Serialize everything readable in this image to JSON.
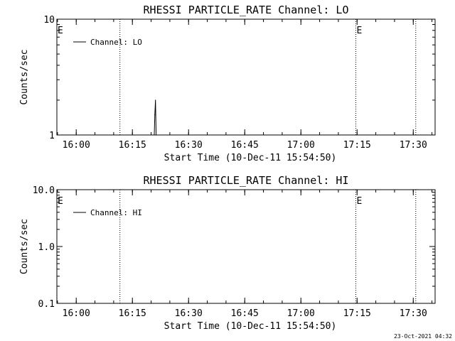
{
  "footer_timestamp": "23-Oct-2021 04:32",
  "chart_data": [
    {
      "type": "line",
      "title": "RHESSI PARTICLE_RATE Channel: LO",
      "xlabel": "Start Time (10-Dec-11 15:54:50)",
      "ylabel": "Counts/sec",
      "yscale": "log",
      "ylim": [
        1,
        10
      ],
      "xlim": [
        "15:54:50",
        "17:35:50"
      ],
      "x_ticks": [
        "16:00",
        "16:15",
        "16:30",
        "16:45",
        "17:00",
        "17:15",
        "17:30"
      ],
      "y_ticks": [
        "1",
        "10"
      ],
      "legend": {
        "position": "top-left",
        "entries": [
          "Channel: LO"
        ]
      },
      "markers": [
        {
          "label": "E",
          "x": "15:54:50"
        },
        {
          "label": "E",
          "x": "17:14:40"
        }
      ],
      "vlines_dotted": [
        "16:11:40",
        "17:14:40",
        "17:30:40"
      ],
      "series": [
        {
          "name": "Channel: LO",
          "points": [
            [
              "16:20:50",
              1.0
            ],
            [
              "16:21:00",
              1.5
            ],
            [
              "16:21:10",
              2.0
            ],
            [
              "16:21:20",
              1.0
            ]
          ]
        }
      ]
    },
    {
      "type": "line",
      "title": "RHESSI PARTICLE_RATE Channel: HI",
      "xlabel": "Start Time (10-Dec-11 15:54:50)",
      "ylabel": "Counts/sec",
      "yscale": "log",
      "ylim": [
        0.1,
        10
      ],
      "xlim": [
        "15:54:50",
        "17:35:50"
      ],
      "x_ticks": [
        "16:00",
        "16:15",
        "16:30",
        "16:45",
        "17:00",
        "17:15",
        "17:30"
      ],
      "y_ticks": [
        "0.1",
        "1.0",
        "10.0"
      ],
      "legend": {
        "position": "top-left",
        "entries": [
          "Channel: HI"
        ]
      },
      "markers": [
        {
          "label": "E",
          "x": "15:54:50"
        },
        {
          "label": "E",
          "x": "17:14:40"
        }
      ],
      "vlines_dotted": [
        "16:11:40",
        "17:14:40",
        "17:30:40"
      ],
      "series": [
        {
          "name": "Channel: HI",
          "points": []
        }
      ]
    }
  ]
}
